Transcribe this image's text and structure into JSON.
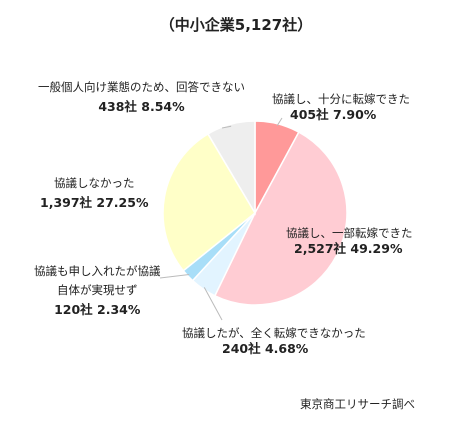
{
  "chart_data": {
    "type": "pie",
    "title": "（中小企業5,127社）",
    "slices": [
      {
        "label": "協議し、十分に転嫁できた",
        "count": "405社",
        "percent": "7.90%",
        "value": 7.9,
        "color": "#ff9999"
      },
      {
        "label": "協議し、一部転嫁できた",
        "count": "2,527社",
        "percent": "49.29%",
        "value": 49.29,
        "color": "#ffccd3"
      },
      {
        "label": "協議したが、全く転嫁できなかった",
        "count": "240社",
        "percent": "4.68%",
        "value": 4.68,
        "color": "#e2f4ff"
      },
      {
        "label": "協議も申し入れたが協議自体が実現せず",
        "label_lines": [
          "協議も申し入れたが協議",
          "自体が実現せず"
        ],
        "count": "120社",
        "percent": "2.34%",
        "value": 2.34,
        "color": "#a8def8"
      },
      {
        "label": "協議しなかった",
        "count": "1,397社",
        "percent": "27.25%",
        "value": 27.25,
        "color": "#ffffc8"
      },
      {
        "label": "一般個人向け業態のため、回答できない",
        "count": "438社",
        "percent": "8.54%",
        "value": 8.54,
        "color": "#eeeeee"
      }
    ],
    "source": "東京商工リサーチ調べ"
  }
}
